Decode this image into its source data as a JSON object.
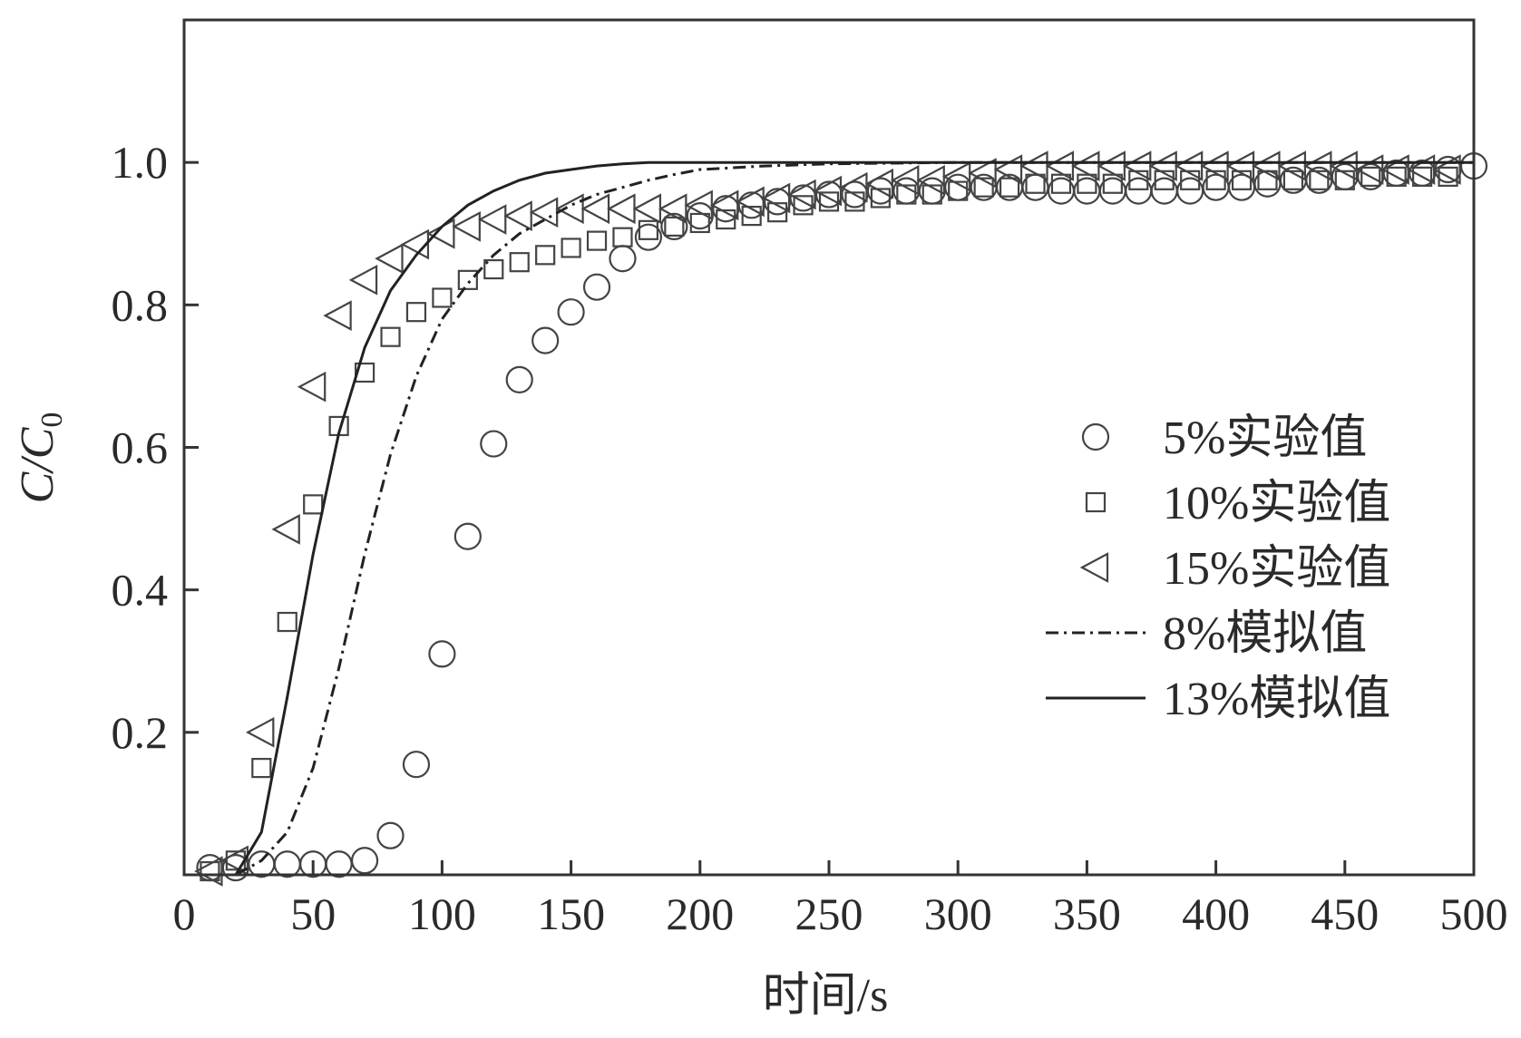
{
  "chart_data": {
    "type": "scatter",
    "title": "",
    "xlabel": "时间/s",
    "ylabel": {
      "main": "C/C",
      "sub": "0"
    },
    "xlim": [
      0,
      500
    ],
    "ylim": [
      0,
      1.2
    ],
    "xticks": [
      0,
      50,
      100,
      150,
      200,
      250,
      300,
      350,
      400,
      450,
      500
    ],
    "xtick_labels": [
      "0",
      "50",
      "100",
      "150",
      "200",
      "250",
      "300",
      "350",
      "400",
      "450",
      "500"
    ],
    "yticks": [
      0.2,
      0.4,
      0.6,
      0.8,
      1.0
    ],
    "ytick_labels": [
      "0.2",
      "0.4",
      "0.6",
      "0.8",
      "1.0"
    ],
    "grid": false,
    "legend_position": "right-middle",
    "series": [
      {
        "name": "5%实验值",
        "kind": "marker",
        "marker": "circle",
        "x": [
          10,
          20,
          30,
          40,
          50,
          60,
          70,
          80,
          90,
          100,
          110,
          120,
          130,
          140,
          150,
          160,
          170,
          180,
          190,
          200,
          210,
          220,
          230,
          240,
          250,
          260,
          270,
          280,
          290,
          300,
          310,
          320,
          330,
          340,
          350,
          360,
          370,
          380,
          390,
          400,
          410,
          420,
          430,
          440,
          450,
          460,
          470,
          480,
          490,
          500
        ],
        "y": [
          0.01,
          0.01,
          0.015,
          0.015,
          0.015,
          0.015,
          0.02,
          0.055,
          0.155,
          0.31,
          0.475,
          0.605,
          0.695,
          0.75,
          0.79,
          0.825,
          0.865,
          0.895,
          0.91,
          0.925,
          0.935,
          0.94,
          0.945,
          0.95,
          0.955,
          0.955,
          0.96,
          0.96,
          0.96,
          0.965,
          0.965,
          0.965,
          0.965,
          0.96,
          0.96,
          0.96,
          0.96,
          0.96,
          0.96,
          0.965,
          0.965,
          0.97,
          0.975,
          0.975,
          0.98,
          0.98,
          0.985,
          0.985,
          0.99,
          0.995
        ]
      },
      {
        "name": "10%实验值",
        "kind": "marker",
        "marker": "square",
        "x": [
          10,
          20,
          30,
          40,
          50,
          60,
          70,
          80,
          90,
          100,
          110,
          120,
          130,
          140,
          150,
          160,
          170,
          180,
          190,
          200,
          210,
          220,
          230,
          240,
          250,
          260,
          270,
          280,
          290,
          300,
          310,
          320,
          330,
          340,
          350,
          360,
          370,
          380,
          390,
          400,
          410,
          420,
          430,
          440,
          450,
          460,
          470,
          480,
          490
        ],
        "y": [
          0.005,
          0.02,
          0.15,
          0.355,
          0.52,
          0.63,
          0.705,
          0.755,
          0.79,
          0.81,
          0.835,
          0.85,
          0.86,
          0.87,
          0.88,
          0.89,
          0.895,
          0.905,
          0.91,
          0.915,
          0.92,
          0.925,
          0.93,
          0.94,
          0.945,
          0.945,
          0.95,
          0.955,
          0.955,
          0.96,
          0.965,
          0.965,
          0.97,
          0.97,
          0.97,
          0.97,
          0.975,
          0.975,
          0.975,
          0.975,
          0.975,
          0.975,
          0.975,
          0.975,
          0.975,
          0.98,
          0.98,
          0.98,
          0.98
        ]
      },
      {
        "name": "15%实验值",
        "kind": "marker",
        "marker": "triangle-left",
        "x": [
          10,
          20,
          30,
          40,
          50,
          60,
          70,
          80,
          90,
          100,
          110,
          120,
          130,
          140,
          150,
          160,
          170,
          180,
          190,
          200,
          210,
          220,
          230,
          240,
          250,
          260,
          270,
          280,
          290,
          300,
          310,
          320,
          330,
          340,
          350,
          360,
          370,
          380,
          390,
          400,
          410,
          420,
          430,
          440,
          450,
          460,
          470,
          480,
          490
        ],
        "y": [
          0.005,
          0.02,
          0.2,
          0.485,
          0.685,
          0.785,
          0.835,
          0.865,
          0.885,
          0.9,
          0.91,
          0.92,
          0.925,
          0.93,
          0.935,
          0.935,
          0.935,
          0.935,
          0.935,
          0.94,
          0.94,
          0.945,
          0.95,
          0.955,
          0.96,
          0.965,
          0.97,
          0.975,
          0.975,
          0.98,
          0.985,
          0.99,
          0.995,
          0.995,
          0.995,
          0.995,
          0.995,
          0.995,
          0.995,
          0.995,
          0.995,
          0.995,
          0.995,
          0.995,
          0.995,
          0.99,
          0.99,
          0.99,
          0.99
        ]
      },
      {
        "name": "8%模拟值",
        "kind": "line",
        "dash": "dash-dot",
        "x": [
          10,
          20,
          30,
          40,
          50,
          60,
          70,
          80,
          90,
          100,
          110,
          120,
          130,
          140,
          150,
          160,
          170,
          180,
          190,
          200,
          225,
          250,
          300,
          350,
          400,
          450,
          500
        ],
        "y": [
          0.0,
          0.0,
          0.02,
          0.06,
          0.15,
          0.29,
          0.45,
          0.59,
          0.7,
          0.78,
          0.83,
          0.87,
          0.9,
          0.92,
          0.94,
          0.955,
          0.965,
          0.975,
          0.983,
          0.99,
          0.995,
          0.998,
          1.0,
          1.0,
          1.0,
          1.0,
          1.0
        ]
      },
      {
        "name": "13%模拟值",
        "kind": "line",
        "dash": "solid",
        "x": [
          10,
          20,
          30,
          40,
          50,
          60,
          70,
          80,
          90,
          100,
          110,
          120,
          130,
          140,
          150,
          160,
          170,
          180,
          200,
          250,
          300,
          350,
          400,
          450,
          500
        ],
        "y": [
          0.0,
          0.0,
          0.06,
          0.25,
          0.45,
          0.62,
          0.74,
          0.82,
          0.87,
          0.91,
          0.94,
          0.96,
          0.975,
          0.985,
          0.99,
          0.995,
          0.998,
          1.0,
          1.0,
          1.0,
          1.0,
          1.0,
          1.0,
          1.0,
          1.0
        ]
      }
    ]
  }
}
